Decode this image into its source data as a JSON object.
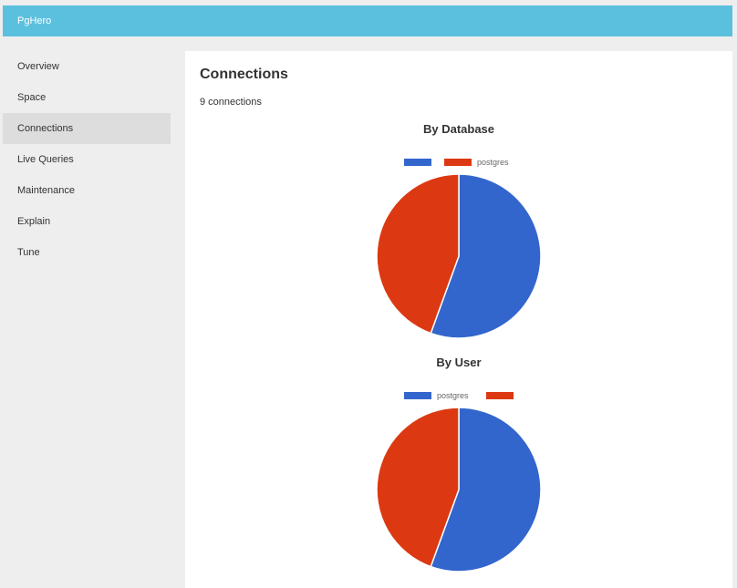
{
  "app": {
    "brand": "PgHero"
  },
  "sidebar": {
    "items": [
      {
        "label": "Overview",
        "active": false
      },
      {
        "label": "Space",
        "active": false
      },
      {
        "label": "Connections",
        "active": true
      },
      {
        "label": "Live Queries",
        "active": false
      },
      {
        "label": "Maintenance",
        "active": false
      },
      {
        "label": "Explain",
        "active": false
      },
      {
        "label": "Tune",
        "active": false
      }
    ]
  },
  "main": {
    "title": "Connections",
    "connection_count": "9 connections"
  },
  "colors": {
    "header": "#5bc0de",
    "series_blue": "#3366cc",
    "series_red": "#dc3912"
  },
  "chart_data": [
    {
      "type": "pie",
      "title": "By Database",
      "legend": "top",
      "slices": [
        {
          "label": "",
          "value": 5,
          "color": "#3366cc"
        },
        {
          "label": "postgres",
          "value": 4,
          "color": "#dc3912"
        }
      ]
    },
    {
      "type": "pie",
      "title": "By User",
      "legend": "top",
      "slices": [
        {
          "label": "postgres",
          "value": 5,
          "color": "#3366cc"
        },
        {
          "label": "",
          "value": 4,
          "color": "#dc3912"
        }
      ]
    }
  ]
}
